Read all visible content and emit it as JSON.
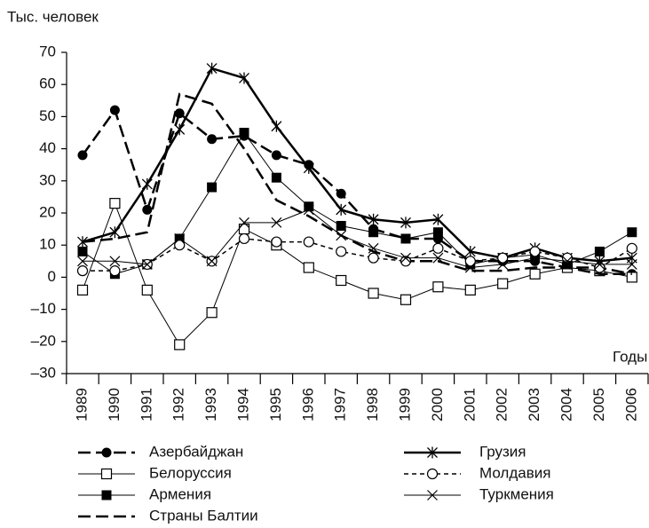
{
  "chart_data": {
    "type": "line",
    "y_label": "Тыс. человек",
    "x_label": "Годы",
    "categories": [
      "1989",
      "1990",
      "1991",
      "1992",
      "1993",
      "1994",
      "1995",
      "1996",
      "1997",
      "1998",
      "1999",
      "2000",
      "2001",
      "2002",
      "2003",
      "2004",
      "2005",
      "2006"
    ],
    "ylim": [
      -30,
      70
    ],
    "yticks": [
      {
        "value": -30,
        "label": "–30"
      },
      {
        "value": -20,
        "label": "–20"
      },
      {
        "value": -10,
        "label": "–10"
      },
      0,
      10,
      20,
      30,
      40,
      50,
      60,
      70
    ],
    "grid": false,
    "series": [
      {
        "name": "Азербайджан",
        "color": "#000000",
        "marker": "filled-circle",
        "dash": "long",
        "width": 2.5,
        "values": [
          38,
          52,
          21,
          51,
          43,
          44,
          38,
          35,
          26,
          15,
          12,
          12,
          5,
          5,
          5,
          3,
          3,
          1
        ]
      },
      {
        "name": "Белоруссия",
        "color": "#000000",
        "marker": "open-square",
        "dash": "solid",
        "width": 1,
        "values": [
          -4,
          23,
          -4,
          -21,
          -11,
          15,
          10,
          3,
          -1,
          -5,
          -7,
          -3,
          -4,
          -2,
          1,
          3,
          2,
          0
        ]
      },
      {
        "name": "Армения",
        "color": "#000000",
        "marker": "filled-square",
        "dash": "solid",
        "width": 1,
        "values": [
          8,
          1,
          4,
          12,
          28,
          45,
          31,
          22,
          16,
          14,
          12,
          14,
          4,
          6,
          7,
          4,
          8,
          14
        ]
      },
      {
        "name": "Страны Балтии",
        "color": "#000000",
        "marker": "none",
        "dash": "long",
        "width": 2.5,
        "values": [
          11,
          12,
          14,
          57,
          54,
          40,
          24,
          19,
          13,
          8,
          5,
          5,
          2,
          2,
          3,
          3,
          1,
          1
        ]
      },
      {
        "name": "Грузия",
        "color": "#000000",
        "marker": "asterisk",
        "dash": "solid",
        "width": 2.5,
        "values": [
          11,
          14,
          29,
          46,
          65,
          62,
          47,
          34,
          21,
          18,
          17,
          18,
          8,
          6,
          9,
          6,
          5,
          6
        ]
      },
      {
        "name": "Молдавия",
        "color": "#000000",
        "marker": "open-circle",
        "dash": "short",
        "width": 1.5,
        "values": [
          2,
          2,
          4,
          10,
          5,
          12,
          11,
          11,
          8,
          6,
          5,
          9,
          5,
          6,
          8,
          6,
          3,
          9
        ]
      },
      {
        "name": "Туркмения",
        "color": "#000000",
        "marker": "cross",
        "dash": "solid",
        "width": 1,
        "values": [
          5,
          5,
          4,
          12,
          5,
          17,
          17,
          21,
          13,
          9,
          6,
          6,
          3,
          4,
          6,
          5,
          4,
          4
        ]
      }
    ]
  }
}
